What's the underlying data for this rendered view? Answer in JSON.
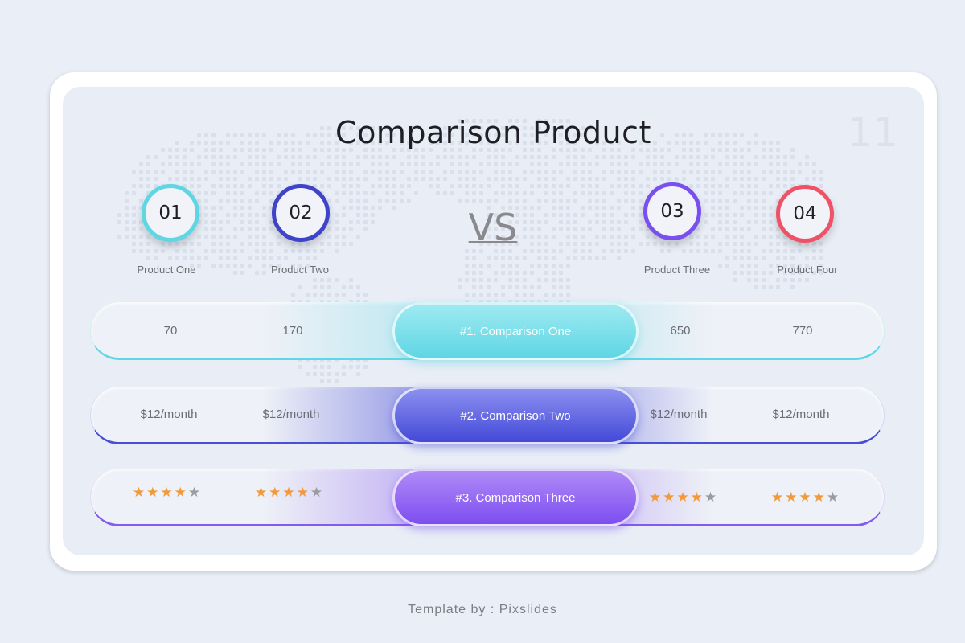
{
  "title": "Comparison Product",
  "page_number": "11",
  "vs_label": "VS",
  "products": [
    {
      "number": "01",
      "name": "Product One",
      "color": "#5fd6e4"
    },
    {
      "number": "02",
      "name": "Product Two",
      "color": "#3f43c9"
    },
    {
      "number": "03",
      "name": "Product Three",
      "color": "#7a4ff0"
    },
    {
      "number": "04",
      "name": "Product Four",
      "color": "#ef5166"
    }
  ],
  "comparisons": [
    {
      "label": "#1. Comparison One",
      "color": "#5fd6e4",
      "values": [
        "70",
        "170",
        "650",
        "770"
      ]
    },
    {
      "label": "#2. Comparison Two",
      "color": "#4a4fd6",
      "values": [
        "$12/month",
        "$12/month",
        "$12/month",
        "$12/month"
      ]
    },
    {
      "label": "#3. Comparison Three",
      "color": "#8659ef",
      "ratings": [
        4,
        4,
        4,
        4
      ],
      "rating_max": 5
    }
  ],
  "credit": "Template by : Pixslides",
  "colors": {
    "star_filled": "#f29a3a",
    "star_empty": "#9a9ca3",
    "background": "#e9eef7"
  }
}
